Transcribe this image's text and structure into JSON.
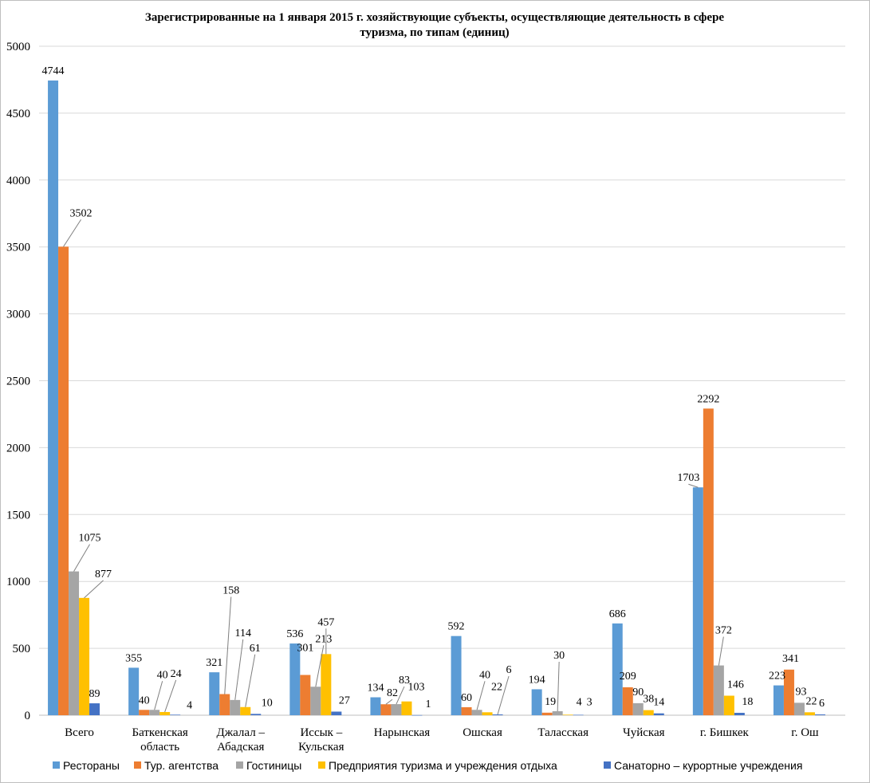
{
  "chart_data": {
    "type": "bar",
    "title": "Зарегистрированные  на 1 января 2015 г. хозяйствующие субъекты, осуществляющие деятельность в сфере туризма, по типам (единиц)",
    "title_lines": [
      "Зарегистрированные  на 1 января 2015 г. хозяйствующие субъекты, осуществляющие деятельность в сфере",
      "туризма, по типам (единиц)"
    ],
    "categories": [
      [
        "Всего"
      ],
      [
        "Баткенская",
        "область"
      ],
      [
        "Джалал –",
        "Абадская"
      ],
      [
        "Иссык –",
        "Кульская"
      ],
      [
        "Нарынская"
      ],
      [
        "Ошская"
      ],
      [
        "Таласская"
      ],
      [
        "Чуйская"
      ],
      [
        "г. Бишкек"
      ],
      [
        "г. Ош"
      ]
    ],
    "series": [
      {
        "name": "Рестораны",
        "color": "#5b9bd5",
        "values": [
          4744,
          355,
          321,
          536,
          134,
          592,
          194,
          686,
          1703,
          223
        ]
      },
      {
        "name": "Тур. агентства",
        "color": "#ed7d31",
        "values": [
          3502,
          40,
          158,
          301,
          82,
          60,
          19,
          209,
          2292,
          341
        ]
      },
      {
        "name": "Гостиницы",
        "color": "#a5a5a5",
        "values": [
          1075,
          40,
          114,
          213,
          83,
          40,
          30,
          90,
          372,
          93
        ]
      },
      {
        "name": "Предприятия   туризма и учреждения отдыха",
        "color": "#ffc000",
        "values": [
          877,
          24,
          61,
          457,
          103,
          22,
          4,
          38,
          146,
          22
        ]
      },
      {
        "name": "Санаторно – курортные учреждения",
        "color": "#4472c4",
        "values": [
          89,
          4,
          10,
          27,
          1,
          6,
          3,
          14,
          18,
          6
        ]
      }
    ],
    "ylim": [
      0,
      5000
    ],
    "yticks": [
      0,
      500,
      1000,
      1500,
      2000,
      2500,
      3000,
      3500,
      4000,
      4500,
      5000
    ],
    "grid": true,
    "legend_position": "bottom",
    "xlabel": "",
    "ylabel": ""
  }
}
